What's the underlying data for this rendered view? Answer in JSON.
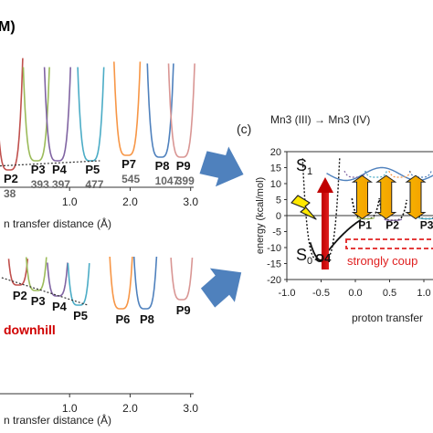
{
  "chart_data": [
    {
      "type": "line",
      "title_fragment": "M)",
      "xlabel": "n transfer distance (Å)",
      "xticks": [
        "1.0",
        "2.0",
        "3.0"
      ],
      "xlim": [
        -0.15,
        3.05
      ],
      "minima": [
        {
          "state": "P2",
          "x": 0.0,
          "energy_label": "38"
        },
        {
          "state": "P3",
          "x": 0.45,
          "energy_label": "393"
        },
        {
          "state": "P4",
          "x": 0.8,
          "energy_label": "397"
        },
        {
          "state": "P5",
          "x": 1.35,
          "energy_label": "477"
        },
        {
          "state": "P7",
          "x": 1.95,
          "energy_label": "545"
        },
        {
          "state": "P8",
          "x": 2.5,
          "energy_label": "1047"
        },
        {
          "state": "P9",
          "x": 2.85,
          "energy_label": "399"
        }
      ],
      "colors": [
        "#c0504d",
        "#9bbb59",
        "#8064a2",
        "#4bacc6",
        "#f79646",
        "#4f81bd",
        "#d99694"
      ]
    },
    {
      "type": "line",
      "xlabel": "n transfer distance (Å)",
      "xticks": [
        "1.0",
        "2.0",
        "3.0"
      ],
      "xlim": [
        -0.15,
        3.05
      ],
      "annotation": "downhill",
      "minima": [
        {
          "state": "P2",
          "x": 0.15
        },
        {
          "state": "P3",
          "x": 0.45
        },
        {
          "state": "P4",
          "x": 0.8
        },
        {
          "state": "P5",
          "x": 1.15
        },
        {
          "state": "P6",
          "x": 1.85
        },
        {
          "state": "P8",
          "x": 2.25
        },
        {
          "state": "P9",
          "x": 2.85
        }
      ]
    },
    {
      "type": "line",
      "panel_label": "(c)",
      "title": "Mn3 (III) → Mn3 (IV)",
      "xlabel": "proton transfer",
      "ylabel": "energy (kcal/mol)",
      "xticks": [
        "-1.0",
        "-0.5",
        "0.0",
        "0.5",
        "1.0"
      ],
      "yticks": [
        "20",
        "15",
        "10",
        "5",
        "0",
        "-5",
        "-10",
        "-15",
        "-20"
      ],
      "xlim": [
        -1.0,
        1.2
      ],
      "ylim": [
        -20,
        20
      ],
      "state_labels": {
        "s1": "S",
        "s1_sub": "1",
        "s0": "S",
        "s0_sub": "0",
        "s0_site": "O4"
      },
      "annotation": "strongly coup",
      "ground_minima": [
        {
          "state": "P1",
          "x": 0.15,
          "y": -1.0
        },
        {
          "state": "P2",
          "x": 0.55,
          "y": -1.5
        },
        {
          "state": "P3",
          "x": 1.05,
          "y": -1.0
        }
      ]
    }
  ]
}
